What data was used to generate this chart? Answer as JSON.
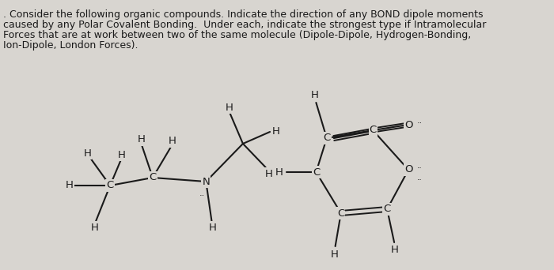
{
  "bg_color": "#d8d5d0",
  "title_text": [
    ". Consider the following organic compounds. Indicate the direction of any BOND dipole moments",
    "caused by any Polar Covalent Bonding.  Under each, indicate the strongest type if Intramolecular",
    "Forces that are at work between two of the same molecule (Dipole-Dipole, Hydrogen-Bonding,",
    "Ion-Dipole, London Forces)."
  ],
  "text_color": "#1a1a1a",
  "font_size_title": 9.0,
  "font_size_atom": 9.5
}
